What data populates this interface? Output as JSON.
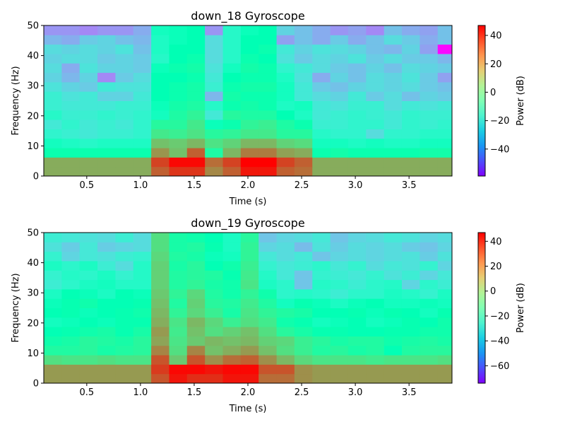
{
  "chart_data": [
    {
      "type": "heatmap",
      "title": "down_18 Gyroscope",
      "xlabel": "Time (s)",
      "ylabel": "Frequency (Hz)",
      "xlim": [
        0.1,
        3.9
      ],
      "ylim": [
        0,
        50
      ],
      "x_ticks": [
        0.5,
        1.0,
        1.5,
        2.0,
        2.5,
        3.0,
        3.5
      ],
      "x_tick_labels": [
        "0.5",
        "1.0",
        "1.5",
        "2.0",
        "2.5",
        "3.0",
        "3.5"
      ],
      "y_ticks": [
        0,
        10,
        20,
        30,
        40,
        50
      ],
      "y_tick_labels": [
        "0",
        "10",
        "20",
        "30",
        "40",
        "50"
      ],
      "x_edges": [
        0.1,
        0.267,
        0.433,
        0.6,
        0.767,
        0.933,
        1.1,
        1.267,
        1.433,
        1.6,
        1.767,
        1.933,
        2.1,
        2.267,
        2.433,
        2.6,
        2.767,
        2.933,
        3.1,
        3.267,
        3.433,
        3.6,
        3.767,
        3.9
      ],
      "y_edges": [
        0,
        3.125,
        6.25,
        9.375,
        12.5,
        15.625,
        18.75,
        21.875,
        25,
        28.125,
        31.25,
        34.375,
        37.5,
        40.625,
        43.75,
        46.875,
        50
      ],
      "colorbar": {
        "label": "Power (dB)",
        "vmin": -59,
        "vmax": 47,
        "ticks": [
          40,
          20,
          0,
          -20,
          -40
        ],
        "tick_labels": [
          "40",
          "20",
          "0",
          "−20",
          "−40"
        ],
        "colormap": "rainbow"
      },
      "z": [
        [
          22,
          22,
          22,
          22,
          22,
          22,
          34,
          40,
          40,
          28,
          34,
          44,
          44,
          34,
          32,
          22,
          22,
          22,
          22,
          22,
          22,
          22,
          22
        ],
        [
          22,
          22,
          22,
          22,
          22,
          22,
          38,
          46,
          46,
          32,
          38,
          47,
          47,
          38,
          34,
          22,
          22,
          22,
          22,
          22,
          22,
          22,
          22
        ],
        [
          -4,
          -4,
          -4,
          -4,
          -4,
          -4,
          26,
          18,
          34,
          0,
          20,
          30,
          30,
          24,
          22,
          -4,
          -2,
          -4,
          -4,
          -4,
          -4,
          -2,
          -2
        ],
        [
          -10,
          -12,
          -14,
          -12,
          -12,
          -12,
          18,
          16,
          20,
          10,
          14,
          20,
          20,
          14,
          12,
          -10,
          -10,
          -12,
          -10,
          -12,
          -12,
          -10,
          -10
        ],
        [
          -16,
          -18,
          -20,
          -18,
          -18,
          -16,
          8,
          6,
          10,
          2,
          4,
          8,
          8,
          2,
          2,
          -14,
          -16,
          -16,
          -24,
          -16,
          -16,
          -14,
          -14
        ],
        [
          -20,
          -16,
          -20,
          -18,
          -20,
          -16,
          2,
          2,
          8,
          -8,
          -4,
          4,
          6,
          0,
          -4,
          -18,
          -18,
          -16,
          -16,
          -20,
          -16,
          -18,
          -16
        ],
        [
          -14,
          -18,
          -18,
          -16,
          -18,
          -16,
          -10,
          0,
          4,
          -20,
          2,
          0,
          0,
          -6,
          -12,
          -20,
          -18,
          -16,
          -18,
          -20,
          -16,
          -18,
          -18
        ],
        [
          -18,
          -20,
          -20,
          -20,
          -18,
          -18,
          -8,
          -2,
          0,
          -14,
          -4,
          -2,
          -4,
          -12,
          -10,
          -20,
          -22,
          -18,
          -18,
          -24,
          -20,
          -22,
          -20
        ],
        [
          -18,
          -22,
          -20,
          -26,
          -26,
          -20,
          -6,
          -4,
          -2,
          -32,
          -2,
          -4,
          -4,
          -10,
          -20,
          -24,
          -26,
          -20,
          -28,
          -24,
          -30,
          -26,
          -28
        ],
        [
          -22,
          -26,
          -28,
          -20,
          -22,
          -22,
          -6,
          -4,
          -2,
          -18,
          -4,
          -2,
          -2,
          -10,
          -20,
          -28,
          -30,
          -26,
          -24,
          -26,
          -24,
          -28,
          -30
        ],
        [
          -26,
          -32,
          -26,
          -40,
          -28,
          -24,
          -6,
          -6,
          -4,
          -20,
          -6,
          -4,
          -4,
          -12,
          -22,
          -34,
          -26,
          -30,
          -24,
          -26,
          -22,
          -28,
          -36
        ],
        [
          -24,
          -34,
          -22,
          -26,
          -26,
          -28,
          -8,
          -4,
          -2,
          -22,
          -10,
          -2,
          -4,
          -16,
          -20,
          -24,
          -28,
          -30,
          -26,
          -30,
          -24,
          -26,
          -28
        ],
        [
          -26,
          -24,
          -24,
          -28,
          -26,
          -28,
          -14,
          -6,
          -4,
          -24,
          -14,
          -4,
          -6,
          -22,
          -28,
          -24,
          -26,
          -22,
          -28,
          -24,
          -28,
          -28,
          -32
        ],
        [
          -24,
          -26,
          -24,
          -26,
          -22,
          -30,
          -12,
          -6,
          -6,
          -24,
          -14,
          -6,
          -4,
          -20,
          -26,
          -22,
          -24,
          -26,
          -30,
          -32,
          -26,
          -36,
          -58
        ],
        [
          -32,
          -34,
          -28,
          -26,
          -30,
          -32,
          -12,
          -8,
          -6,
          -24,
          -14,
          -6,
          -6,
          -36,
          -30,
          -34,
          -28,
          -34,
          -30,
          -24,
          -28,
          -34,
          -30
        ],
        [
          -38,
          -38,
          -40,
          -38,
          -38,
          -34,
          -10,
          -8,
          -6,
          -38,
          -14,
          -8,
          -6,
          -26,
          -30,
          -34,
          -38,
          -36,
          -40,
          -30,
          -34,
          -36,
          -30
        ],
        [
          -40,
          -38,
          -40,
          -42,
          -38,
          -30,
          -18,
          -10,
          -8,
          -30,
          -46,
          -8,
          -8,
          -28,
          -32,
          -36,
          -40,
          -36,
          -48,
          -40,
          -36,
          -38,
          -34
        ]
      ]
    },
    {
      "type": "heatmap",
      "title": "down_19 Gyroscope",
      "xlabel": "Time (s)",
      "ylabel": "Frequency (Hz)",
      "xlim": [
        0.1,
        3.9
      ],
      "ylim": [
        0,
        50
      ],
      "x_ticks": [
        0.5,
        1.0,
        1.5,
        2.0,
        2.5,
        3.0,
        3.5
      ],
      "x_tick_labels": [
        "0.5",
        "1.0",
        "1.5",
        "2.0",
        "2.5",
        "3.0",
        "3.5"
      ],
      "y_ticks": [
        0,
        10,
        20,
        30,
        40,
        50
      ],
      "y_tick_labels": [
        "0",
        "10",
        "20",
        "30",
        "40",
        "50"
      ],
      "x_edges": [
        0.1,
        0.267,
        0.433,
        0.6,
        0.767,
        0.933,
        1.1,
        1.267,
        1.433,
        1.6,
        1.767,
        1.933,
        2.1,
        2.267,
        2.433,
        2.6,
        2.767,
        2.933,
        3.1,
        3.267,
        3.433,
        3.6,
        3.767,
        3.9
      ],
      "y_edges": [
        0,
        3.125,
        6.25,
        9.375,
        12.5,
        15.625,
        18.75,
        21.875,
        25,
        28.125,
        31.25,
        34.375,
        37.5,
        40.625,
        43.75,
        46.875,
        50
      ],
      "colorbar": {
        "label": "Power (dB)",
        "vmin": -74,
        "vmax": 47,
        "ticks": [
          40,
          20,
          0,
          -20,
          -40,
          -60
        ],
        "tick_labels": [
          "40",
          "20",
          "0",
          "−20",
          "−40",
          "−60"
        ],
        "colormap": "rainbow"
      },
      "z": [
        [
          22,
          22,
          22,
          22,
          22,
          22,
          34,
          44,
          40,
          40,
          44,
          44,
          30,
          30,
          24,
          22,
          22,
          22,
          22,
          22,
          22,
          22,
          22
        ],
        [
          22,
          22,
          22,
          22,
          22,
          22,
          38,
          46,
          46,
          44,
          46,
          46,
          34,
          34,
          24,
          22,
          22,
          22,
          22,
          22,
          22,
          22,
          22
        ],
        [
          6,
          4,
          4,
          6,
          4,
          4,
          34,
          12,
          34,
          24,
          30,
          32,
          24,
          16,
          8,
          4,
          4,
          4,
          2,
          4,
          4,
          4,
          6
        ],
        [
          -6,
          -6,
          -4,
          -8,
          -6,
          -4,
          26,
          6,
          26,
          14,
          18,
          22,
          14,
          6,
          0,
          -6,
          -4,
          -8,
          -6,
          -14,
          -6,
          -4,
          -4
        ],
        [
          -10,
          -8,
          -4,
          -6,
          -8,
          -4,
          20,
          4,
          12,
          16,
          14,
          16,
          10,
          8,
          0,
          -4,
          -8,
          -6,
          -6,
          -10,
          -8,
          -6,
          -8
        ],
        [
          -14,
          -12,
          -10,
          -8,
          -12,
          -8,
          22,
          2,
          14,
          6,
          10,
          14,
          6,
          -4,
          -8,
          -12,
          -12,
          -14,
          -14,
          -12,
          -12,
          -10,
          -10
        ],
        [
          -18,
          -16,
          -14,
          -16,
          -12,
          -12,
          18,
          4,
          16,
          8,
          0,
          6,
          2,
          -10,
          -12,
          -18,
          -16,
          -14,
          -18,
          -16,
          -12,
          -14,
          -10
        ],
        [
          -14,
          -12,
          -16,
          -14,
          -12,
          -10,
          16,
          -2,
          8,
          0,
          -8,
          4,
          -2,
          -6,
          -8,
          -14,
          -14,
          -12,
          -16,
          -12,
          -14,
          -18,
          -12
        ],
        [
          -16,
          -12,
          -10,
          -14,
          -14,
          -12,
          14,
          -6,
          10,
          -4,
          -6,
          2,
          -6,
          -18,
          -12,
          -16,
          -20,
          -16,
          -14,
          -18,
          -18,
          -16,
          -18
        ],
        [
          -20,
          -14,
          -16,
          -20,
          -14,
          -16,
          12,
          -2,
          8,
          -6,
          -10,
          -2,
          -10,
          -24,
          -22,
          -24,
          -28,
          -24,
          -24,
          -20,
          -22,
          -26,
          -20
        ],
        [
          -28,
          -24,
          -20,
          -18,
          -22,
          -22,
          10,
          -6,
          -2,
          -8,
          -10,
          4,
          -20,
          -24,
          -40,
          -22,
          -24,
          -28,
          -24,
          -22,
          -36,
          -24,
          -28
        ],
        [
          -26,
          -22,
          -24,
          -20,
          -26,
          -22,
          10,
          -6,
          -4,
          -6,
          -12,
          2,
          -22,
          -30,
          -40,
          -26,
          -28,
          -30,
          -26,
          -32,
          -28,
          -36,
          -30
        ],
        [
          -20,
          -24,
          -20,
          -28,
          -34,
          -22,
          10,
          -8,
          -4,
          -14,
          -10,
          0,
          -26,
          -30,
          -28,
          -24,
          -30,
          -26,
          -34,
          -30,
          -32,
          -26,
          -36
        ],
        [
          -26,
          -36,
          -30,
          -32,
          -28,
          -26,
          8,
          -6,
          -8,
          -16,
          -18,
          -2,
          -30,
          -34,
          -30,
          -40,
          -36,
          -34,
          -36,
          -34,
          -32,
          -38,
          -32
        ],
        [
          -32,
          -38,
          -30,
          -38,
          -36,
          -34,
          6,
          -8,
          -6,
          -12,
          -20,
          -2,
          -36,
          -34,
          -42,
          -32,
          -38,
          -34,
          -36,
          -34,
          -38,
          -40,
          -36
        ],
        [
          -28,
          -30,
          -32,
          -34,
          -28,
          -34,
          6,
          -8,
          -10,
          -14,
          -20,
          -4,
          -40,
          -36,
          -34,
          -30,
          -40,
          -36,
          -34,
          -30,
          -32,
          -36,
          -34
        ],
        [
          -34,
          -40,
          -42,
          -50,
          -44,
          -34,
          4,
          -10,
          -6,
          -16,
          -36,
          -6,
          -36,
          -74,
          -30,
          -44,
          -56,
          -36,
          -36,
          -36,
          -36,
          -40,
          -34
        ]
      ]
    }
  ]
}
